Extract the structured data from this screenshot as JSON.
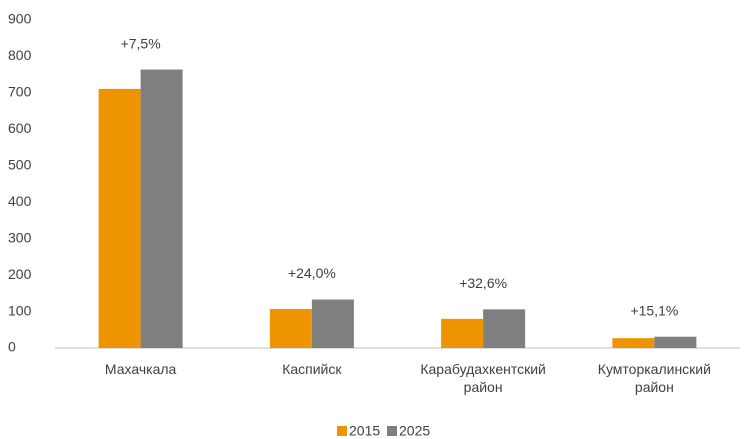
{
  "chart_data": {
    "type": "bar",
    "categories": [
      "Махачкала",
      "Каспийск",
      "Карабудахкентский район",
      "Кумторкалинский район"
    ],
    "series": [
      {
        "name": "2015",
        "color": "#ed9400",
        "values": [
          711,
          107,
          80,
          27
        ]
      },
      {
        "name": "2025",
        "color": "#7f7f7f",
        "values": [
          764,
          133,
          106,
          31
        ]
      }
    ],
    "annotations": [
      "+7,5%",
      "+24,0%",
      "+32,6%",
      "+15,1%"
    ],
    "ylim": [
      0,
      900
    ],
    "yticks": [
      0,
      100,
      200,
      300,
      400,
      500,
      600,
      700,
      800,
      900
    ],
    "grid": false,
    "legend": "bottom"
  }
}
